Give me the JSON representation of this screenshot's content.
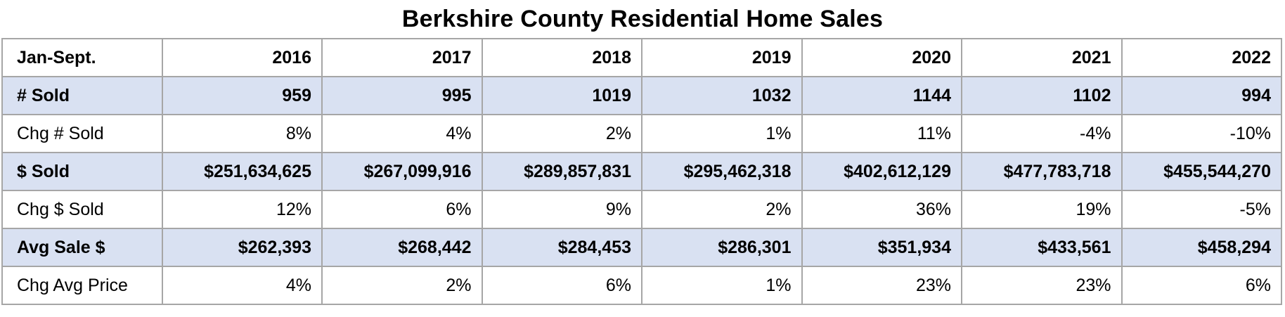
{
  "title": "Berkshire County Residential Home Sales",
  "chart_data": {
    "type": "table",
    "title": "Berkshire County Residential Home Sales",
    "header": [
      "Jan-Sept.",
      "2016",
      "2017",
      "2018",
      "2019",
      "2020",
      "2021",
      "2022"
    ],
    "rows": [
      {
        "label": "# Sold",
        "values": [
          "959",
          "995",
          "1019",
          "1032",
          "1144",
          "1102",
          "994"
        ],
        "bold": true,
        "shaded": true
      },
      {
        "label": "Chg # Sold",
        "values": [
          "8%",
          "4%",
          "2%",
          "1%",
          "11%",
          "-4%",
          "-10%"
        ],
        "bold": false,
        "shaded": false
      },
      {
        "label": "$ Sold",
        "values": [
          "$251,634,625",
          "$267,099,916",
          "$289,857,831",
          "$295,462,318",
          "$402,612,129",
          "$477,783,718",
          "$455,544,270"
        ],
        "bold": true,
        "shaded": true
      },
      {
        "label": "Chg $ Sold",
        "values": [
          "12%",
          "6%",
          "9%",
          "2%",
          "36%",
          "19%",
          "-5%"
        ],
        "bold": false,
        "shaded": false
      },
      {
        "label": "Avg Sale $",
        "values": [
          "$262,393",
          "$268,442",
          "$284,453",
          "$286,301",
          "$351,934",
          "$433,561",
          "$458,294"
        ],
        "bold": true,
        "shaded": true
      },
      {
        "label": "Chg Avg Price",
        "values": [
          "4%",
          "2%",
          "6%",
          "1%",
          "23%",
          "23%",
          "6%"
        ],
        "bold": false,
        "shaded": false
      }
    ],
    "colors": {
      "shaded_row": "#d9e1f2",
      "border": "#a6a6a6"
    }
  }
}
